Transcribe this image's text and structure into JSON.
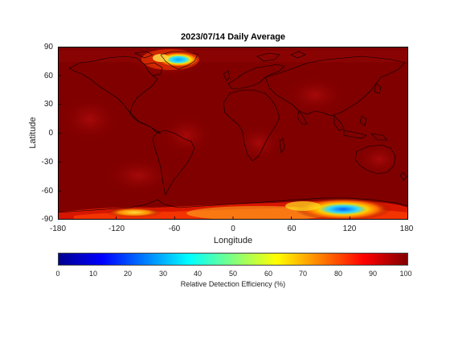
{
  "figure": {
    "title": "2023/07/14 Daily Average",
    "xlabel": "Longitude",
    "ylabel": "Latitude",
    "x_ticks": [
      "-180",
      "-120",
      "-60",
      "0",
      "60",
      "120",
      "180"
    ],
    "y_ticks": [
      "90",
      "60",
      "30",
      "0",
      "-30",
      "-60",
      "-90"
    ],
    "colorbar_ticks": [
      "0",
      "10",
      "20",
      "30",
      "40",
      "50",
      "60",
      "70",
      "80",
      "90",
      "100"
    ],
    "colorbar_label": "Relative Detection Efficiency (%)",
    "colormap": "jet",
    "colors": {
      "background_field": "#800000",
      "coastline": "#000000"
    },
    "regions_of_low_efficiency": [
      {
        "lon_range": [
          -60,
          -30
        ],
        "lat_range": [
          67,
          82
        ],
        "min_value_percent": 35
      },
      {
        "lon_range": [
          90,
          150
        ],
        "lat_range": [
          -85,
          -70
        ],
        "min_value_percent": 35
      },
      {
        "lon_range": [
          -150,
          -90
        ],
        "lat_range": [
          -90,
          -75
        ],
        "min_value_percent": 75
      }
    ]
  }
}
